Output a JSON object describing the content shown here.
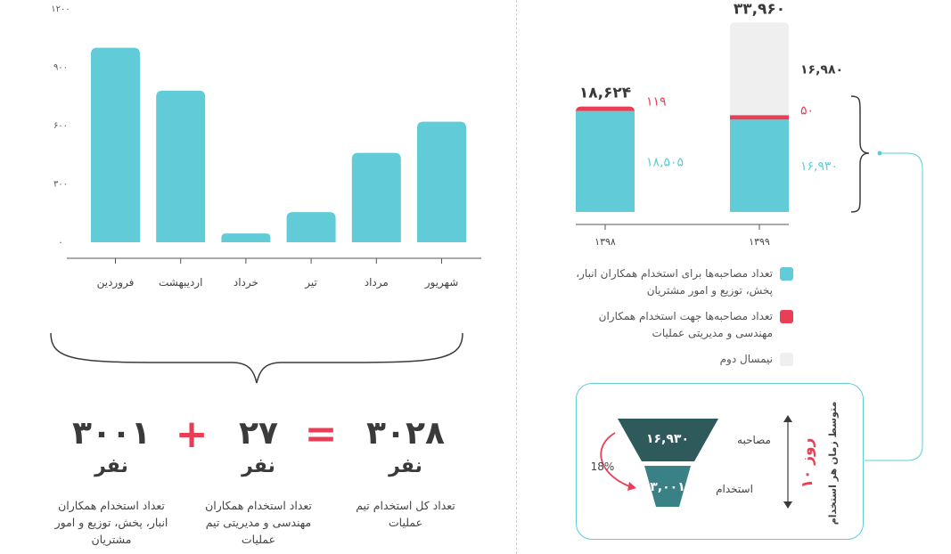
{
  "chart_data": [
    {
      "type": "bar",
      "categories": [
        "فروردین",
        "اردیبهشت",
        "خرداد",
        "تیر",
        "مرداد",
        "شهریور"
      ],
      "values": [
        1000,
        780,
        45,
        155,
        460,
        620
      ],
      "yticks": [
        "۰",
        "۳۰۰",
        "۶۰۰",
        "۹۰۰",
        "۱۲۰۰"
      ],
      "ylim": [
        0,
        1200
      ],
      "color": "#62cbd8"
    },
    {
      "type": "bar",
      "stacked": true,
      "categories": [
        "۱۳۹۸",
        "۱۳۹۹"
      ],
      "totals_labels": [
        "۱۸,۶۲۴",
        "۳۳,۹۶۰"
      ],
      "series": [
        {
          "name": "تعداد مصاحبه‌ها برای استخدام همکاران انبار، پخش، توزیع و امور مشتریان",
          "color": "#62cbd8",
          "values": [
            18505,
            16930
          ],
          "labels": [
            "۱۸,۵۰۵",
            "۱۶,۹۳۰"
          ]
        },
        {
          "name": "تعداد مصاحبه‌ها جهت استخدام همکاران مهندسی و مدیریتی عملیات",
          "color": "#ea3e57",
          "values": [
            119,
            50
          ],
          "labels": [
            "۱۱۹",
            "۵۰"
          ]
        },
        {
          "name": "نیمسال دوم",
          "color": "#efefef",
          "values": [
            0,
            16980
          ],
          "labels": [
            "",
            "۱۶,۹۸۰"
          ]
        }
      ]
    },
    {
      "type": "funnel",
      "stages": [
        {
          "name": "مصاحبه",
          "value": 16930,
          "label": "۱۶,۹۳۰",
          "color": "#2e5a5c"
        },
        {
          "name": "استخدام",
          "value": 3001,
          "label": "۳,۰۰۱",
          "color": "#3a8185"
        }
      ],
      "conversion_label": "18%",
      "avg_time_label": "۱۰ روز",
      "avg_time_caption": "متوسط زمان هر استخدام"
    }
  ],
  "equation": {
    "term1": {
      "value": "۳۰۰۱",
      "unit": "نفر",
      "desc": "تعداد استخدام همکاران انبار، پخش، توزیع و امور مشتریان"
    },
    "plus": "+",
    "term2": {
      "value": "۲۷",
      "unit": "نفر",
      "desc": "تعداد استخدام همکاران مهندسی و مدیریتی تیم عملیات"
    },
    "equals": "=",
    "total": {
      "value": "۳۰۲۸",
      "unit": "نفر",
      "desc": "تعداد کل استخدام تیم عملیات"
    }
  },
  "colors": {
    "accent": "#62cbd8",
    "red": "#ea3e57",
    "grey": "#efefef",
    "dark_teal": "#2e5a5c"
  }
}
